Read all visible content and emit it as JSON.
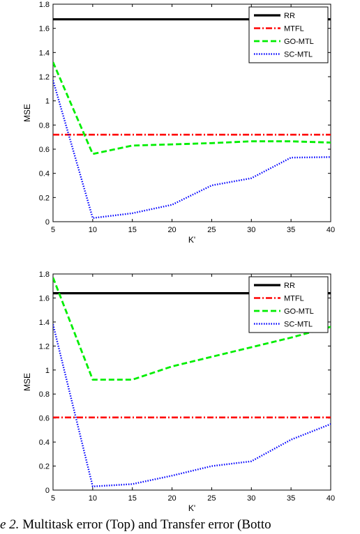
{
  "caption": {
    "prefix": "e 2.",
    "text": " Multitask error (Top) and Transfer error (Botto"
  },
  "chart_data": [
    {
      "type": "line",
      "xlabel": "K'",
      "ylabel": "MSE",
      "xlim": [
        5,
        40
      ],
      "ylim": [
        0,
        1.8
      ],
      "xticks": [
        5,
        10,
        15,
        20,
        25,
        30,
        35,
        40
      ],
      "yticks": [
        0,
        0.2,
        0.4,
        0.6,
        0.8,
        1,
        1.2,
        1.4,
        1.6,
        1.8
      ],
      "grid": false,
      "legend_position": "top-right",
      "series": [
        {
          "name": "RR",
          "color": "#000000",
          "style": "solid",
          "x": [
            5,
            40
          ],
          "y": [
            1.675,
            1.675
          ]
        },
        {
          "name": "MTFL",
          "color": "#ff0000",
          "style": "dashdot",
          "x": [
            5,
            40
          ],
          "y": [
            0.72,
            0.72
          ]
        },
        {
          "name": "GO-MTL",
          "color": "#00ee00",
          "style": "dashed",
          "x": [
            5,
            10,
            15,
            20,
            25,
            30,
            35,
            40
          ],
          "y": [
            1.32,
            0.56,
            0.63,
            0.64,
            0.65,
            0.665,
            0.665,
            0.655
          ]
        },
        {
          "name": "SC-MTL",
          "color": "#0000ff",
          "style": "dotted",
          "x": [
            5,
            10,
            15,
            20,
            25,
            30,
            35,
            40
          ],
          "y": [
            1.17,
            0.03,
            0.07,
            0.14,
            0.3,
            0.36,
            0.53,
            0.535
          ]
        }
      ]
    },
    {
      "type": "line",
      "xlabel": "K'",
      "ylabel": "MSE",
      "xlim": [
        5,
        40
      ],
      "ylim": [
        0,
        1.8
      ],
      "xticks": [
        5,
        10,
        15,
        20,
        25,
        30,
        35,
        40
      ],
      "yticks": [
        0,
        0.2,
        0.4,
        0.6,
        0.8,
        1,
        1.2,
        1.4,
        1.6,
        1.8
      ],
      "grid": false,
      "legend_position": "top-right",
      "series": [
        {
          "name": "RR",
          "color": "#000000",
          "style": "solid",
          "x": [
            5,
            40
          ],
          "y": [
            1.64,
            1.64
          ]
        },
        {
          "name": "MTFL",
          "color": "#ff0000",
          "style": "dashdot",
          "x": [
            5,
            40
          ],
          "y": [
            0.605,
            0.605
          ]
        },
        {
          "name": "GO-MTL",
          "color": "#00ee00",
          "style": "dashed",
          "x": [
            5,
            10,
            15,
            20,
            25,
            30,
            35,
            40
          ],
          "y": [
            1.77,
            0.92,
            0.92,
            1.03,
            1.11,
            1.19,
            1.27,
            1.36
          ]
        },
        {
          "name": "SC-MTL",
          "color": "#0000ff",
          "style": "dotted",
          "x": [
            5,
            10,
            15,
            20,
            25,
            30,
            35,
            40
          ],
          "y": [
            1.38,
            0.03,
            0.05,
            0.12,
            0.2,
            0.24,
            0.42,
            0.55
          ]
        }
      ]
    }
  ]
}
